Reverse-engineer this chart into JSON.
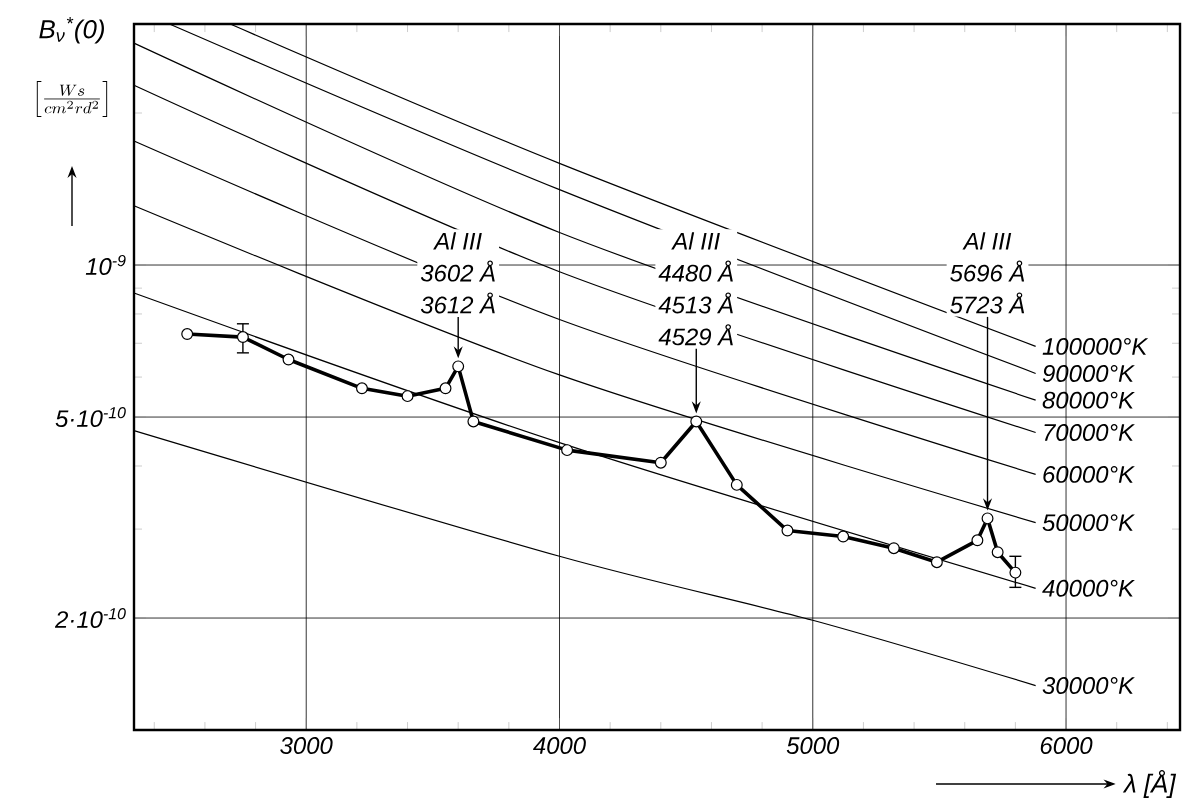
{
  "chart_data": {
    "type": "line",
    "ylabel": "B$_{ν}$$^{*}$(0)",
    "xlabel": "λ [Å]",
    "xlim": [
      2320,
      6450
    ],
    "ylim": [
      1.2e-10,
      3e-09
    ],
    "log": "y",
    "grid": true,
    "line_style": "solid",
    "xticks": [
      {
        "value": 2400,
        "label": null
      },
      {
        "value": 2600,
        "label": null
      },
      {
        "value": 2800,
        "label": null
      },
      3000,
      {
        "value": 3200,
        "label": null
      },
      {
        "value": 3400,
        "label": null
      },
      {
        "value": 3600,
        "label": null
      },
      {
        "value": 3800,
        "label": null
      },
      4000,
      {
        "value": 4200,
        "label": null
      },
      {
        "value": 4400,
        "label": null
      },
      {
        "value": 4600,
        "label": null
      },
      {
        "value": 4800,
        "label": null
      },
      5000,
      {
        "value": 5200,
        "label": null
      },
      {
        "value": 5400,
        "label": null
      },
      {
        "value": 5600,
        "label": null
      },
      {
        "value": 5800,
        "label": null
      },
      6000,
      {
        "value": 6200,
        "label": null
      },
      {
        "value": 6400,
        "label": null
      }
    ],
    "yticks": [
      {
        "value": 2e-10,
        "label": "2·10$^{-10}$"
      },
      {
        "value": 3e-10,
        "label": null
      },
      {
        "value": 4e-10,
        "label": null
      },
      {
        "value": 5e-10,
        "label": "5·10$^{-10}$"
      },
      {
        "value": 6e-10,
        "label": null
      },
      {
        "value": 7e-10,
        "label": null
      },
      {
        "value": 8e-10,
        "label": null
      },
      {
        "value": 9e-10,
        "label": null
      },
      {
        "value": 1e-09,
        "label": "10$^{-9}$"
      },
      {
        "value": 2e-09,
        "label": null
      }
    ],
    "series": [
      {
        "color": "#000000",
        "marker": "circle",
        "x": [
          2530,
          2750,
          2930,
          3220,
          3400,
          3550,
          3600,
          3660,
          4030,
          4400,
          4540,
          4700,
          4900,
          5120,
          5320,
          5490,
          5650,
          5690,
          5730,
          5800
        ],
        "values": [
          7.3e-10,
          7.2e-10,
          6.5e-10,
          5.7e-10,
          5.5e-10,
          5.7e-10,
          6.3e-10,
          4.9e-10,
          4.3e-10,
          4.06e-10,
          4.9e-10,
          3.67e-10,
          2.98e-10,
          2.9e-10,
          2.75e-10,
          2.58e-10,
          2.85e-10,
          3.15e-10,
          2.7e-10,
          2.46e-10
        ],
        "errors": [
          null,
          [
            6.7e-10,
            7.65e-10
          ],
          null,
          null,
          null,
          null,
          null,
          null,
          null,
          null,
          null,
          null,
          null,
          null,
          null,
          null,
          null,
          null,
          null,
          [
            2.3e-10,
            2.65e-10
          ]
        ]
      },
      {
        "name": "100000°K",
        "color": "#000000",
        "marker": "none",
        "x": [
          2700,
          4000,
          5880
        ],
        "values": [
          3e-09,
          1.59e-09,
          6.9e-10
        ]
      },
      {
        "name": "90000°K",
        "color": "#000000",
        "marker": "none",
        "x": [
          2460,
          4000,
          5880
        ],
        "values": [
          3e-09,
          1.41e-09,
          6.1e-10
        ]
      },
      {
        "name": "80000°K",
        "color": "#000000",
        "marker": "none",
        "x": [
          2320,
          4000,
          5880
        ],
        "values": [
          2.75e-09,
          1.16e-09,
          5.4e-10
        ]
      },
      {
        "name": "70000°K",
        "color": "#000000",
        "marker": "none",
        "x": [
          2320,
          4000,
          5880
        ],
        "values": [
          2.27e-09,
          9.7e-10,
          4.66e-10
        ]
      },
      {
        "name": "60000°K",
        "color": "#000000",
        "marker": "none",
        "x": [
          2320,
          4000,
          5880
        ],
        "values": [
          1.76e-09,
          7.8e-10,
          3.85e-10
        ]
      },
      {
        "name": "50000°K",
        "color": "#000000",
        "marker": "none",
        "x": [
          2320,
          4000,
          5880
        ],
        "values": [
          1.31e-09,
          6.06e-10,
          3.09e-10
        ]
      },
      {
        "name": "40000°K",
        "color": "#000000",
        "marker": "none",
        "x": [
          2320,
          4000,
          5880
        ],
        "values": [
          8.8e-10,
          4.45e-10,
          2.29e-10
        ]
      },
      {
        "name": "30000°K",
        "color": "#000000",
        "marker": "none",
        "x": [
          2320,
          4000,
          5000,
          5880
        ],
        "values": [
          4.7e-10,
          2.65e-10,
          1.98e-10,
          1.47e-10
        ]
      }
    ],
    "annotations": [
      "Al III",
      "3602 Å",
      {
        "text": "3612 Å",
        "x": 3600,
        "y": 6.3e-10
      },
      "Al III",
      "4480 Å",
      "4513 Å",
      {
        "text": "4529 Å",
        "x": 4540,
        "y": 4.9e-10
      },
      "Al III",
      "5696 Å",
      {
        "text": "5723 Å",
        "x": 5690,
        "y": 3.15e-10
      },
      "\\left[\\frac{Ws}{cm^{2}rd^{2}}\\right]"
    ]
  }
}
